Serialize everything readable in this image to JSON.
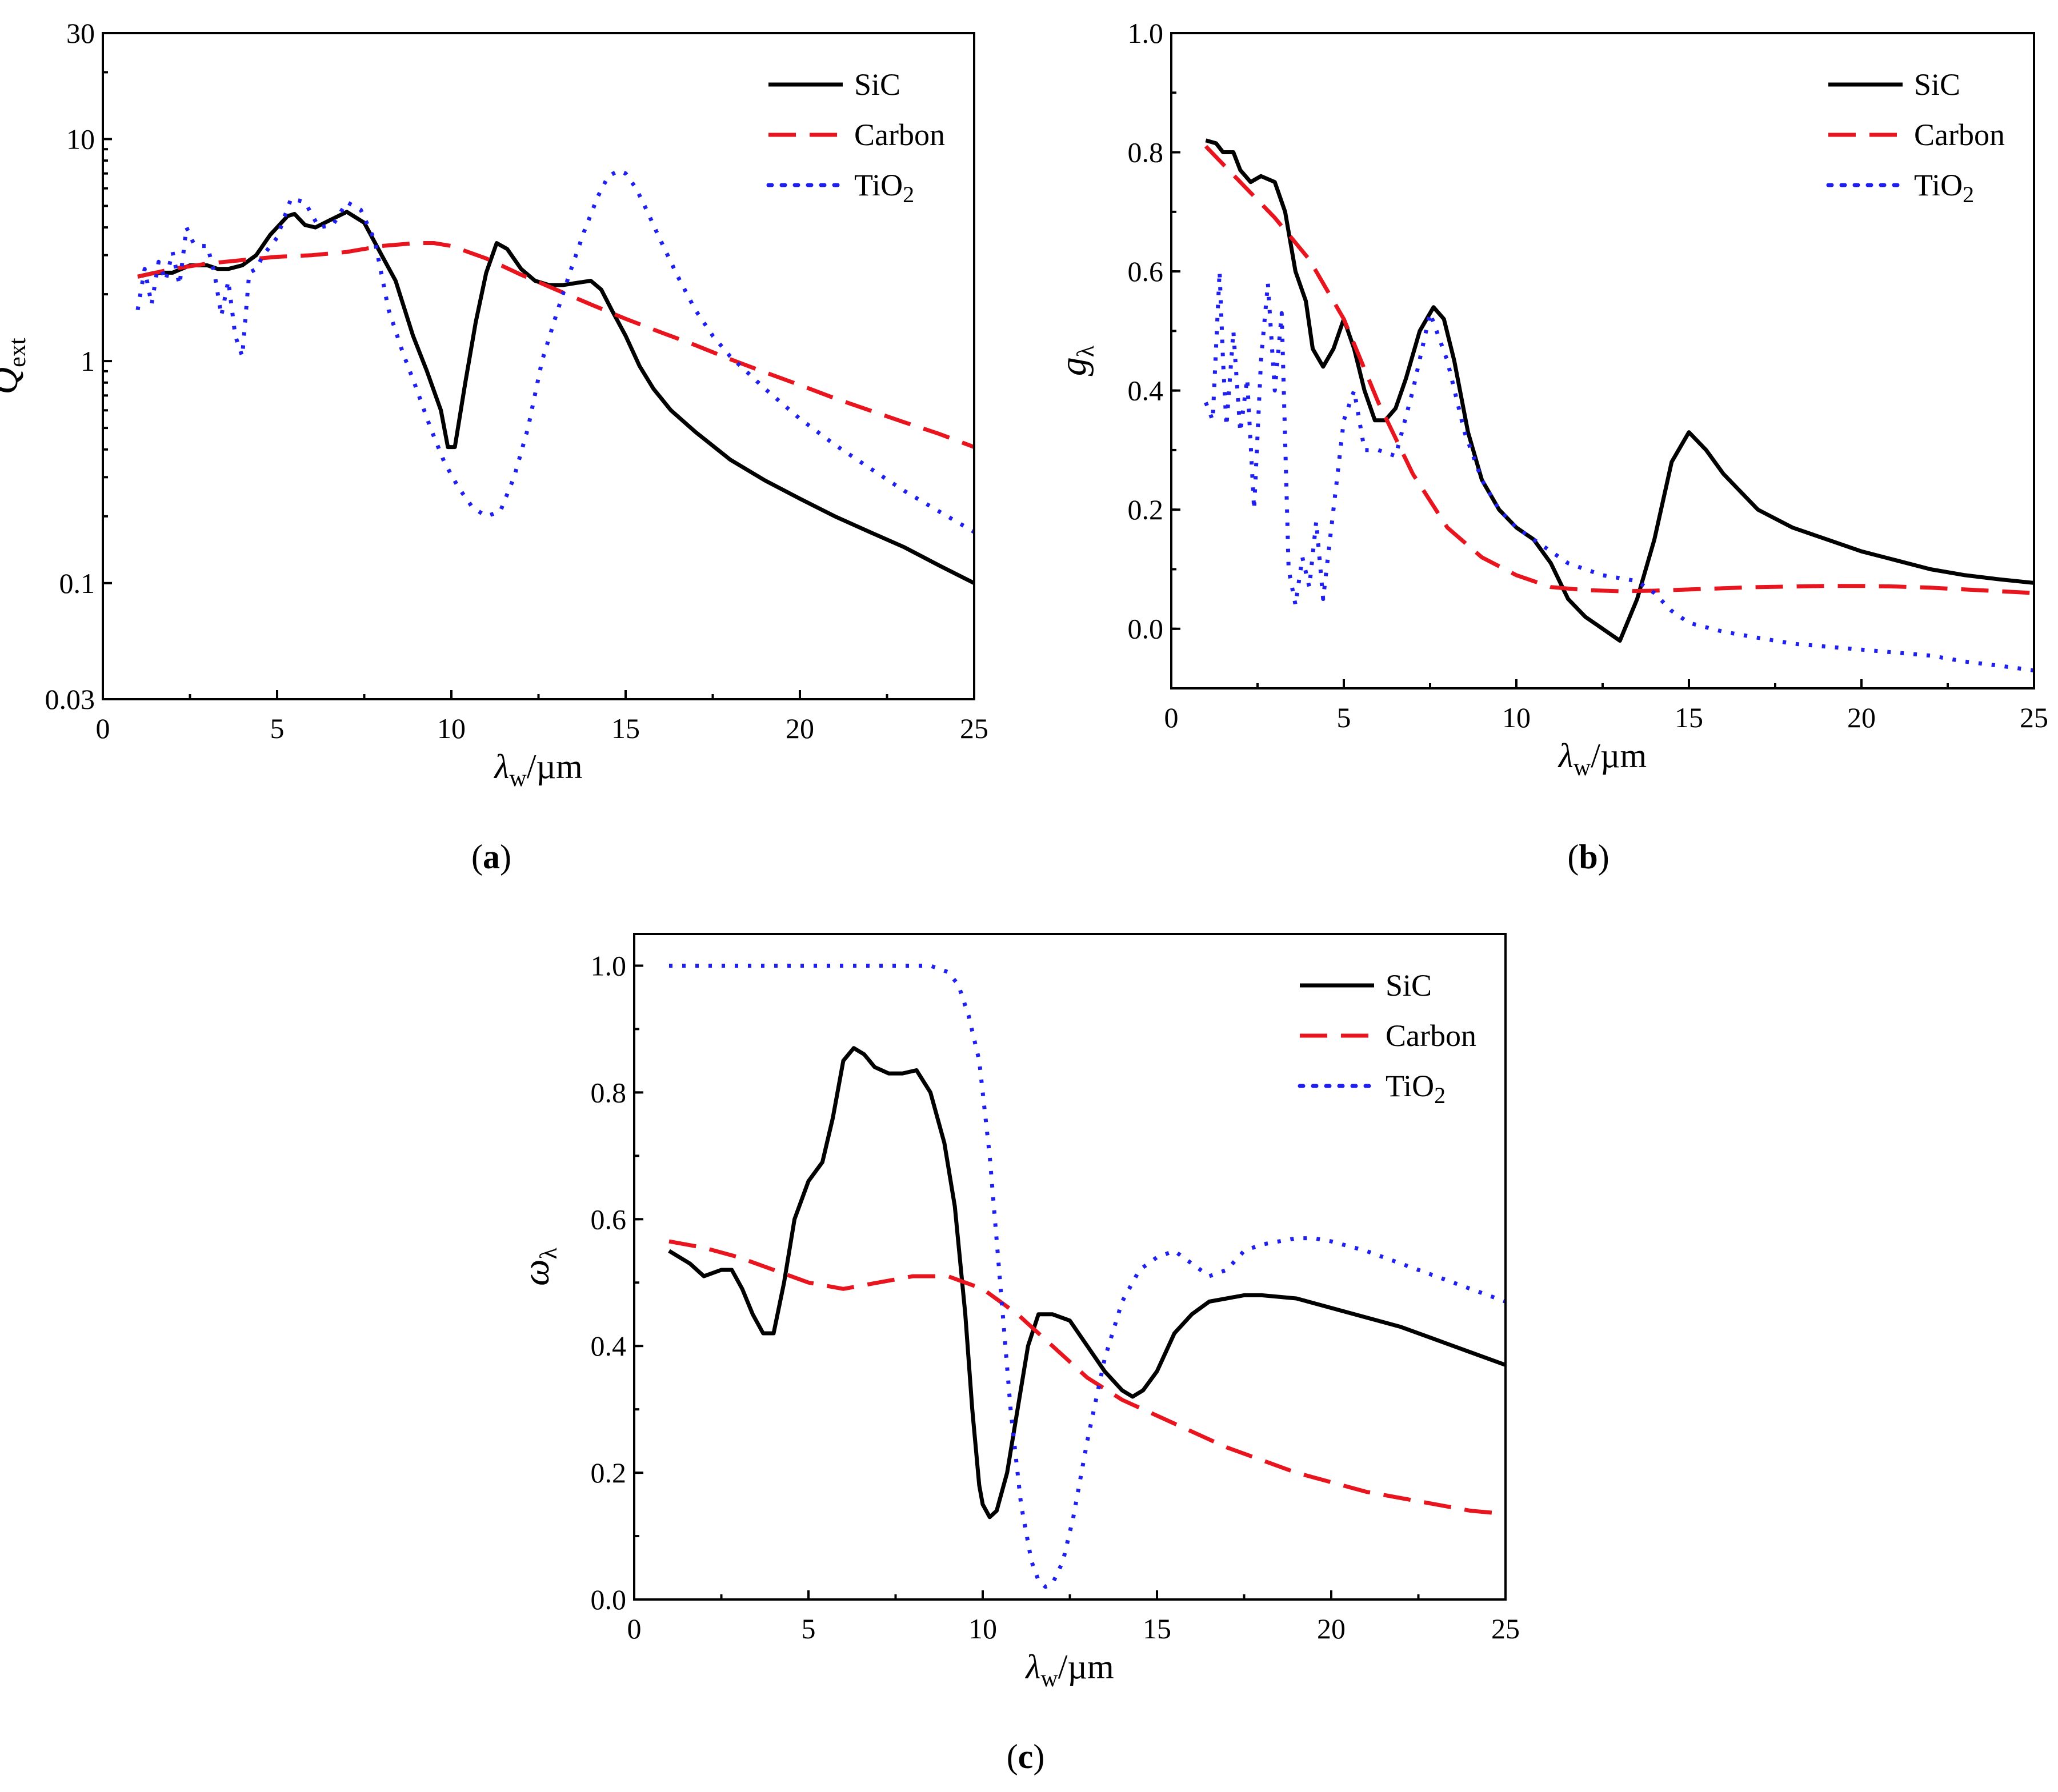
{
  "figure": {
    "colors": {
      "SiC": "#000000",
      "Carbon": "#e8141e",
      "TiO2": "#1f1ff0"
    }
  },
  "chart_data": [
    {
      "id": "a",
      "panel_label": "(a)",
      "panel_letter": "a",
      "type": "line",
      "yscale": "log",
      "xlabel_main": "λ",
      "xlabel_sub": "w",
      "xlabel_unit": "/µm",
      "ylabel_main": "Q",
      "ylabel_sub": "ext",
      "xlim": [
        0,
        25
      ],
      "ylim": [
        0.03,
        30
      ],
      "xticks": [
        0,
        5,
        10,
        15,
        20,
        25
      ],
      "xtick_labels": [
        "0",
        "5",
        "10",
        "15",
        "20",
        "25"
      ],
      "yticks": [
        0.03,
        0.1,
        1,
        10,
        30
      ],
      "ytick_labels": [
        "0.03",
        "0.1",
        "1",
        "10",
        "30"
      ],
      "legend_position": "top-right",
      "legend": [
        "SiC",
        "Carbon",
        "TiO2"
      ],
      "series": [
        {
          "name": "SiC",
          "style": "solid",
          "x": [
            1.0,
            1.5,
            2.0,
            2.5,
            3.0,
            3.3,
            3.6,
            4.0,
            4.4,
            4.8,
            5.0,
            5.3,
            5.5,
            5.8,
            6.1,
            6.5,
            7.0,
            7.5,
            8.0,
            8.4,
            8.9,
            9.3,
            9.7,
            9.9,
            10.1,
            10.4,
            10.7,
            11.0,
            11.3,
            11.6,
            12.0,
            12.4,
            12.8,
            13.2,
            13.6,
            14.0,
            14.3,
            14.6,
            15.0,
            15.4,
            15.8,
            16.3,
            17.0,
            18.0,
            19.0,
            20.0,
            21.0,
            22.0,
            23.0,
            24.0,
            25.0
          ],
          "y": [
            2.4,
            2.5,
            2.5,
            2.7,
            2.7,
            2.6,
            2.6,
            2.7,
            3.0,
            3.7,
            4.0,
            4.5,
            4.6,
            4.1,
            4.0,
            4.3,
            4.7,
            4.2,
            3.0,
            2.3,
            1.3,
            0.9,
            0.6,
            0.41,
            0.41,
            0.8,
            1.5,
            2.5,
            3.4,
            3.2,
            2.6,
            2.3,
            2.2,
            2.2,
            2.25,
            2.3,
            2.1,
            1.7,
            1.3,
            0.95,
            0.75,
            0.6,
            0.48,
            0.36,
            0.29,
            0.24,
            0.2,
            0.17,
            0.145,
            0.12,
            0.1
          ]
        },
        {
          "name": "Carbon",
          "style": "dashed",
          "x": [
            1,
            2,
            3,
            4,
            5,
            6,
            7,
            8,
            9,
            9.5,
            10,
            11,
            12,
            13,
            14,
            15,
            16,
            17,
            18,
            19,
            20,
            21,
            22,
            23,
            24,
            25
          ],
          "y": [
            2.4,
            2.6,
            2.75,
            2.85,
            2.95,
            3.0,
            3.1,
            3.3,
            3.4,
            3.4,
            3.3,
            2.9,
            2.45,
            2.1,
            1.8,
            1.55,
            1.35,
            1.18,
            1.02,
            0.89,
            0.78,
            0.68,
            0.6,
            0.53,
            0.47,
            0.41
          ]
        },
        {
          "name": "TiO2",
          "style": "dotted",
          "x": [
            1.0,
            1.2,
            1.4,
            1.6,
            1.8,
            2.0,
            2.2,
            2.4,
            2.6,
            2.8,
            3.0,
            3.2,
            3.4,
            3.6,
            3.8,
            4.0,
            4.2,
            4.4,
            4.6,
            5.0,
            5.4,
            5.8,
            6.2,
            6.6,
            7.0,
            7.4,
            7.8,
            8.2,
            8.6,
            9.0,
            9.4,
            9.8,
            10.2,
            10.6,
            11.0,
            11.4,
            11.8,
            12.2,
            12.6,
            13.0,
            13.4,
            13.8,
            14.2,
            14.5,
            14.8,
            15.0,
            15.3,
            15.6,
            16.0,
            16.5,
            17.0,
            17.5,
            18.0,
            19.0,
            20.0,
            21.0,
            22.0,
            23.0,
            24.0,
            25.0
          ],
          "y": [
            1.7,
            2.6,
            1.8,
            2.8,
            2.3,
            3.1,
            2.2,
            4.0,
            3.4,
            3.3,
            3.3,
            2.5,
            1.6,
            2.3,
            1.3,
            1.05,
            2.5,
            2.6,
            3.0,
            3.6,
            5.4,
            5.2,
            4.0,
            4.1,
            5.2,
            4.8,
            3.5,
            1.7,
            1.1,
            0.75,
            0.5,
            0.35,
            0.27,
            0.22,
            0.2,
            0.21,
            0.3,
            0.5,
            1.0,
            1.6,
            2.5,
            3.8,
            5.5,
            6.8,
            7.2,
            7.0,
            6.0,
            4.8,
            3.5,
            2.4,
            1.7,
            1.3,
            1.05,
            0.75,
            0.55,
            0.42,
            0.33,
            0.26,
            0.21,
            0.17
          ]
        }
      ]
    },
    {
      "id": "b",
      "panel_label": "(b)",
      "panel_letter": "b",
      "type": "line",
      "yscale": "linear",
      "xlabel_main": "λ",
      "xlabel_sub": "w",
      "xlabel_unit": "/µm",
      "ylabel_main": "g",
      "ylabel_sub": "λ",
      "xlim": [
        0,
        25
      ],
      "ylim": [
        -0.1,
        1.0
      ],
      "xticks": [
        0,
        5,
        10,
        15,
        20,
        25
      ],
      "xtick_labels": [
        "0",
        "5",
        "10",
        "15",
        "20",
        "25"
      ],
      "yticks": [
        0.0,
        0.2,
        0.4,
        0.6,
        0.8,
        1.0
      ],
      "ytick_labels": [
        "0.0",
        "0.2",
        "0.4",
        "0.6",
        "0.8",
        "1.0"
      ],
      "legend_position": "top-right",
      "legend": [
        "SiC",
        "Carbon",
        "TiO2"
      ],
      "series": [
        {
          "name": "SiC",
          "style": "solid",
          "x": [
            1.0,
            1.3,
            1.5,
            1.8,
            2.0,
            2.3,
            2.6,
            3.0,
            3.3,
            3.6,
            3.9,
            4.1,
            4.4,
            4.7,
            5.0,
            5.3,
            5.6,
            5.9,
            6.2,
            6.5,
            6.8,
            7.2,
            7.6,
            7.9,
            8.2,
            8.6,
            9.0,
            9.5,
            10.0,
            10.5,
            11.0,
            11.5,
            12.0,
            12.5,
            13.0,
            13.5,
            14.0,
            14.5,
            15.0,
            15.5,
            16.0,
            17.0,
            18.0,
            19.0,
            20.0,
            21.0,
            22.0,
            23.0,
            24.0,
            25.0
          ],
          "y": [
            0.82,
            0.815,
            0.8,
            0.8,
            0.77,
            0.75,
            0.76,
            0.75,
            0.7,
            0.6,
            0.55,
            0.47,
            0.44,
            0.47,
            0.52,
            0.47,
            0.4,
            0.35,
            0.35,
            0.37,
            0.42,
            0.5,
            0.54,
            0.52,
            0.45,
            0.33,
            0.25,
            0.2,
            0.17,
            0.15,
            0.11,
            0.05,
            0.02,
            0.0,
            -0.02,
            0.05,
            0.15,
            0.28,
            0.33,
            0.3,
            0.26,
            0.2,
            0.17,
            0.15,
            0.13,
            0.115,
            0.1,
            0.09,
            0.083,
            0.077
          ]
        },
        {
          "name": "Carbon",
          "style": "dashed",
          "x": [
            1,
            2,
            3,
            4,
            5,
            6,
            7,
            8,
            9,
            10,
            11,
            12,
            13,
            14,
            15,
            16,
            17,
            18,
            19,
            20,
            21,
            22,
            23,
            24,
            25
          ],
          "y": [
            0.81,
            0.75,
            0.69,
            0.62,
            0.52,
            0.38,
            0.26,
            0.17,
            0.12,
            0.09,
            0.07,
            0.065,
            0.063,
            0.064,
            0.066,
            0.068,
            0.07,
            0.071,
            0.072,
            0.072,
            0.071,
            0.069,
            0.066,
            0.063,
            0.06
          ]
        },
        {
          "name": "TiO2",
          "style": "dotted",
          "x": [
            1.0,
            1.2,
            1.4,
            1.5,
            1.6,
            1.8,
            2.0,
            2.2,
            2.4,
            2.6,
            2.8,
            3.0,
            3.2,
            3.4,
            3.6,
            3.8,
            4.0,
            4.2,
            4.4,
            4.6,
            4.8,
            5.0,
            5.3,
            5.6,
            6.0,
            6.5,
            7.0,
            7.5,
            8.0,
            8.5,
            9.0,
            9.5,
            10.0,
            10.5,
            11.0,
            11.5,
            12.0,
            12.5,
            13.0,
            13.5,
            14.0,
            14.5,
            15.0,
            16.0,
            17.0,
            18.0,
            19.0,
            20.0,
            21.0,
            22.0,
            23.0,
            24.0,
            25.0
          ],
          "y": [
            0.38,
            0.35,
            0.6,
            0.45,
            0.34,
            0.5,
            0.33,
            0.42,
            0.2,
            0.45,
            0.58,
            0.4,
            0.53,
            0.1,
            0.04,
            0.12,
            0.07,
            0.18,
            0.05,
            0.15,
            0.25,
            0.35,
            0.4,
            0.3,
            0.3,
            0.29,
            0.4,
            0.53,
            0.45,
            0.33,
            0.25,
            0.2,
            0.17,
            0.15,
            0.13,
            0.11,
            0.1,
            0.09,
            0.085,
            0.08,
            0.06,
            0.03,
            0.01,
            -0.005,
            -0.015,
            -0.025,
            -0.03,
            -0.035,
            -0.04,
            -0.045,
            -0.055,
            -0.062,
            -0.07
          ]
        }
      ]
    },
    {
      "id": "c",
      "panel_label": "(c)",
      "panel_letter": "c",
      "type": "line",
      "yscale": "linear",
      "xlabel_main": "λ",
      "xlabel_sub": "w",
      "xlabel_unit": "/µm",
      "ylabel_main": "ω",
      "ylabel_sub": "λ",
      "xlim": [
        0,
        25
      ],
      "ylim": [
        0.0,
        1.05
      ],
      "xticks": [
        0,
        5,
        10,
        15,
        20,
        25
      ],
      "xtick_labels": [
        "0",
        "5",
        "10",
        "15",
        "20",
        "25"
      ],
      "yticks": [
        0.0,
        0.2,
        0.4,
        0.6,
        0.8,
        1.0
      ],
      "ytick_labels": [
        "0.0",
        "0.2",
        "0.4",
        "0.6",
        "0.8",
        "1.0"
      ],
      "legend_position": "top-right",
      "legend": [
        "SiC",
        "Carbon",
        "TiO2"
      ],
      "series": [
        {
          "name": "SiC",
          "style": "solid",
          "x": [
            1.0,
            1.3,
            1.6,
            2.0,
            2.5,
            2.8,
            3.1,
            3.4,
            3.7,
            4.0,
            4.3,
            4.6,
            5.0,
            5.4,
            5.7,
            6.0,
            6.3,
            6.6,
            6.9,
            7.3,
            7.7,
            8.1,
            8.5,
            8.9,
            9.2,
            9.5,
            9.7,
            9.9,
            10.0,
            10.2,
            10.4,
            10.7,
            11.0,
            11.3,
            11.6,
            12.0,
            12.5,
            13.0,
            13.5,
            14.0,
            14.3,
            14.6,
            15.0,
            15.5,
            16.0,
            16.5,
            17.0,
            17.5,
            18.0,
            19.0,
            20.0,
            21.0,
            22.0,
            23.0,
            24.0,
            25.0
          ],
          "y": [
            0.55,
            0.54,
            0.53,
            0.51,
            0.52,
            0.52,
            0.49,
            0.45,
            0.42,
            0.42,
            0.5,
            0.6,
            0.66,
            0.69,
            0.76,
            0.85,
            0.87,
            0.86,
            0.84,
            0.83,
            0.83,
            0.835,
            0.8,
            0.72,
            0.62,
            0.45,
            0.3,
            0.18,
            0.15,
            0.13,
            0.14,
            0.2,
            0.3,
            0.4,
            0.45,
            0.45,
            0.44,
            0.4,
            0.36,
            0.33,
            0.32,
            0.33,
            0.36,
            0.42,
            0.45,
            0.47,
            0.475,
            0.48,
            0.48,
            0.475,
            0.46,
            0.445,
            0.43,
            0.41,
            0.39,
            0.37
          ]
        },
        {
          "name": "Carbon",
          "style": "dashed",
          "x": [
            1,
            2,
            3,
            4,
            5,
            6,
            7,
            8,
            9,
            10,
            11,
            12,
            13,
            14,
            15,
            16,
            17,
            18,
            19,
            20,
            21,
            22,
            23,
            24,
            25
          ],
          "y": [
            0.565,
            0.555,
            0.54,
            0.52,
            0.5,
            0.49,
            0.5,
            0.51,
            0.51,
            0.49,
            0.45,
            0.4,
            0.35,
            0.315,
            0.29,
            0.265,
            0.24,
            0.22,
            0.2,
            0.185,
            0.17,
            0.16,
            0.15,
            0.14,
            0.135
          ]
        },
        {
          "name": "TiO2",
          "style": "dotted",
          "x": [
            1,
            2,
            3,
            4,
            5,
            6,
            7,
            8,
            8.5,
            9.0,
            9.3,
            9.6,
            9.9,
            10.2,
            10.5,
            10.8,
            11.1,
            11.4,
            11.6,
            11.8,
            12.0,
            12.3,
            12.6,
            13.0,
            13.5,
            14.0,
            14.5,
            15.0,
            15.5,
            16.0,
            16.5,
            17.0,
            17.5,
            18.0,
            18.5,
            19.0,
            19.5,
            20.0,
            21.0,
            22.0,
            23.0,
            24.0,
            25.0
          ],
          "y": [
            1.0,
            1.0,
            1.0,
            1.0,
            1.0,
            1.0,
            1.0,
            1.0,
            1.0,
            0.99,
            0.97,
            0.92,
            0.85,
            0.7,
            0.5,
            0.3,
            0.15,
            0.06,
            0.03,
            0.02,
            0.025,
            0.06,
            0.13,
            0.25,
            0.38,
            0.47,
            0.52,
            0.54,
            0.55,
            0.53,
            0.51,
            0.52,
            0.55,
            0.56,
            0.565,
            0.57,
            0.57,
            0.565,
            0.55,
            0.53,
            0.51,
            0.49,
            0.47
          ]
        }
      ]
    }
  ]
}
